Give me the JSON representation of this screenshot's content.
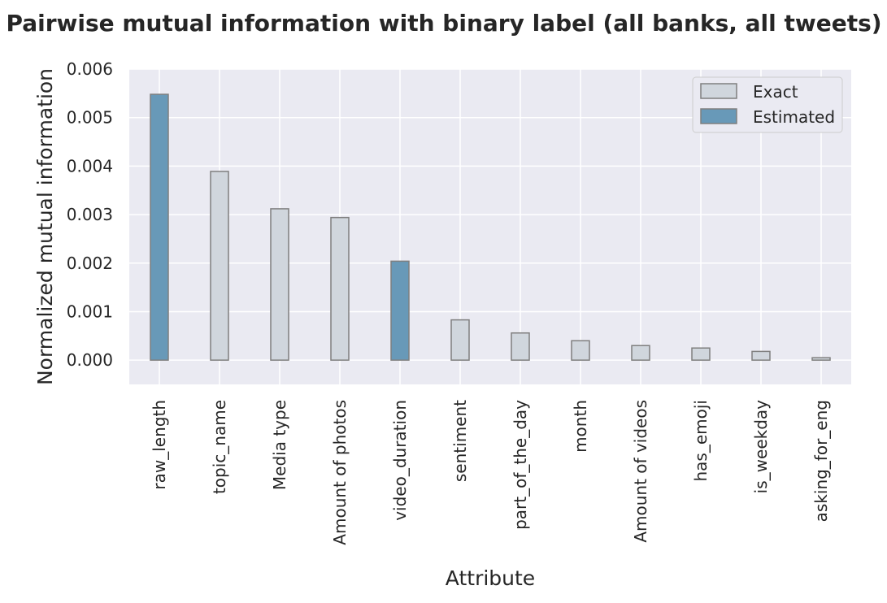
{
  "chart_data": {
    "type": "bar",
    "title": "Pairwise mutual information with binary label (all banks, all tweets)",
    "xlabel": "Attribute",
    "ylabel": "Normalized mutual information",
    "ylim": [
      -0.0005,
      0.006
    ],
    "yticks": [
      "0.000",
      "0.001",
      "0.002",
      "0.003",
      "0.004",
      "0.005",
      "0.006"
    ],
    "ytick_values": [
      0,
      0.001,
      0.002,
      0.003,
      0.004,
      0.005,
      0.006
    ],
    "categories": [
      "raw_length",
      "topic_name",
      "Media type",
      "Amount of photos",
      "video_duration",
      "sentiment",
      "part_of_the_day",
      "month",
      "Amount of videos",
      "has_emoji",
      "is_weekday",
      "asking_for_eng"
    ],
    "values": [
      0.00548,
      0.00389,
      0.00312,
      0.00294,
      0.00204,
      0.00083,
      0.00056,
      0.0004,
      0.0003,
      0.00025,
      0.00018,
      5e-05
    ],
    "kinds": [
      "Estimated",
      "Exact",
      "Exact",
      "Exact",
      "Estimated",
      "Exact",
      "Exact",
      "Exact",
      "Exact",
      "Exact",
      "Exact",
      "Exact"
    ],
    "legend": [
      {
        "name": "Exact",
        "color": "#d0d6dd"
      },
      {
        "name": "Estimated",
        "color": "#6899b8"
      }
    ],
    "legend_position": "top-right",
    "grid": true,
    "colors": {
      "background": "#eaeaf2",
      "grid": "#ffffff",
      "edge": "#7f7f7f"
    }
  }
}
